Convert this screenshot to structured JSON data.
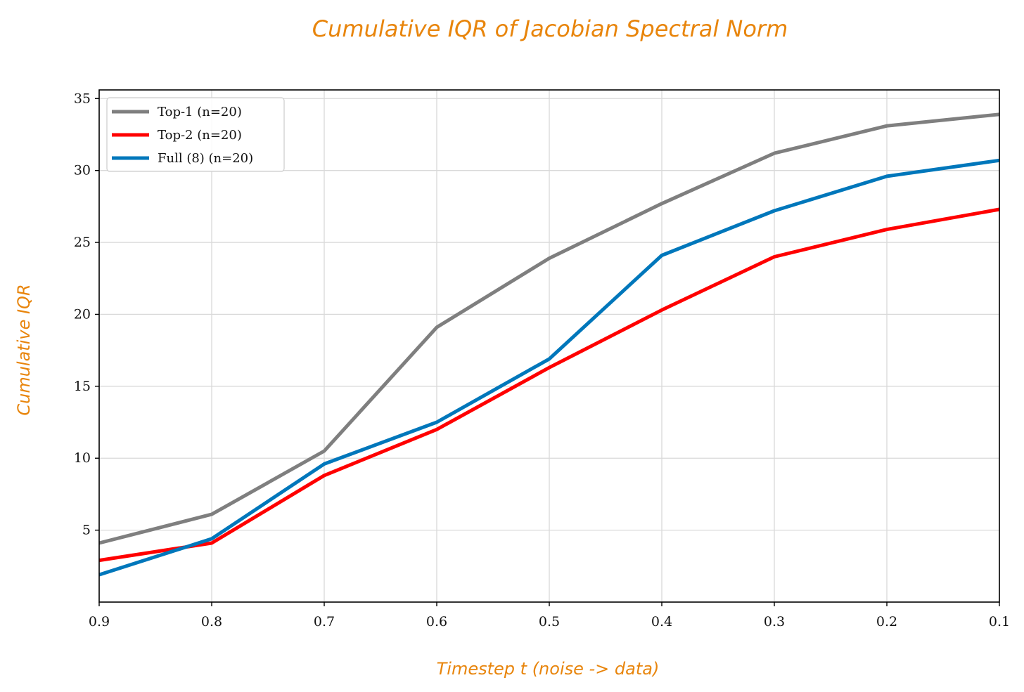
{
  "chart_data": {
    "type": "line",
    "title": "Cumulative IQR of Jacobian Spectral Norm",
    "xlabel": "Timestep t (noise -> data)",
    "ylabel": "Cumulative IQR",
    "x": [
      0.9,
      0.8,
      0.7,
      0.6,
      0.5,
      0.4,
      0.3,
      0.2,
      0.1
    ],
    "x_tick_labels": [
      "0.9",
      "0.8",
      "0.7",
      "0.6",
      "0.5",
      "0.4",
      "0.3",
      "0.2",
      "0.1"
    ],
    "y_ticks": [
      5,
      10,
      15,
      20,
      25,
      30,
      35
    ],
    "xlim": [
      0.9,
      0.1
    ],
    "ylim": [
      0.0,
      35.6
    ],
    "grid": true,
    "legend_position": "top-left",
    "series": [
      {
        "name": "Top-1 (n=20)",
        "color": "#7f7f7f",
        "values": [
          4.1,
          6.1,
          10.5,
          19.1,
          23.9,
          27.7,
          31.2,
          33.1,
          33.9
        ]
      },
      {
        "name": "Top-2 (n=20)",
        "color": "#ff0000",
        "values": [
          2.9,
          4.1,
          8.8,
          12.0,
          16.3,
          20.3,
          24.0,
          25.9,
          27.3
        ]
      },
      {
        "name": "Full (8) (n=20)",
        "color": "#0077bb",
        "values": [
          1.9,
          4.4,
          9.6,
          12.5,
          16.9,
          24.1,
          27.2,
          29.6,
          30.7
        ]
      }
    ]
  }
}
